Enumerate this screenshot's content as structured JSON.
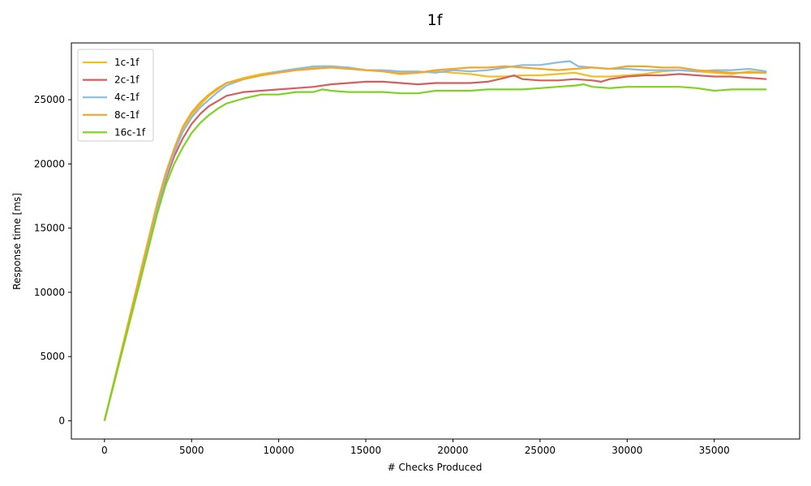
{
  "chart_data": {
    "type": "line",
    "title": "1f",
    "xlabel": "# Checks Produced",
    "ylabel": "Response time [ms]",
    "xlim": [
      -1900,
      39900
    ],
    "ylim": [
      -1420,
      29420
    ],
    "xticks": [
      0,
      5000,
      10000,
      15000,
      20000,
      25000,
      30000,
      35000
    ],
    "yticks": [
      0,
      5000,
      10000,
      15000,
      20000,
      25000
    ],
    "grid": false,
    "legend_position": "upper left",
    "series": [
      {
        "name": "1c-1f",
        "color": "#f0c020",
        "x": [
          0,
          1000,
          2000,
          3000,
          3500,
          4000,
          4500,
          5000,
          5500,
          6000,
          6500,
          7000,
          8000,
          9000,
          10000,
          11000,
          12000,
          12500,
          13000,
          14000,
          15000,
          16000,
          17000,
          18000,
          19000,
          20000,
          21000,
          22000,
          23000,
          24000,
          25000,
          26000,
          27000,
          28000,
          29000,
          30000,
          31000,
          32000,
          33000,
          34000,
          35000,
          36000,
          37000,
          38000
        ],
        "y": [
          0,
          5500,
          11000,
          16600,
          19000,
          21000,
          22700,
          23800,
          24600,
          25300,
          25800,
          26300,
          26700,
          27000,
          27200,
          27400,
          27500,
          27600,
          27600,
          27500,
          27300,
          27200,
          27100,
          27100,
          27200,
          27100,
          27000,
          26800,
          26800,
          26900,
          26900,
          27000,
          27100,
          26800,
          26800,
          26900,
          27000,
          27200,
          27300,
          27200,
          27100,
          27000,
          27200,
          27100
        ]
      },
      {
        "name": "2c-1f",
        "color": "#d45f5f",
        "x": [
          0,
          1000,
          2000,
          3000,
          3500,
          4000,
          4500,
          5000,
          5500,
          6000,
          6500,
          7000,
          8000,
          9000,
          10000,
          11000,
          12000,
          13000,
          14000,
          15000,
          16000,
          17000,
          18000,
          19000,
          20000,
          21000,
          22000,
          23000,
          23500,
          24000,
          25000,
          26000,
          27000,
          28000,
          28500,
          29000,
          30000,
          31000,
          32000,
          33000,
          34000,
          35000,
          36000,
          37000,
          38000
        ],
        "y": [
          0,
          5400,
          10800,
          16300,
          18700,
          20600,
          22000,
          23100,
          23900,
          24500,
          24900,
          25300,
          25600,
          25700,
          25800,
          25900,
          26000,
          26200,
          26300,
          26400,
          26400,
          26300,
          26200,
          26300,
          26300,
          26300,
          26400,
          26700,
          26900,
          26600,
          26500,
          26500,
          26600,
          26500,
          26400,
          26600,
          26800,
          26900,
          26900,
          27000,
          26900,
          26800,
          26800,
          26700,
          26600
        ]
      },
      {
        "name": "4c-1f",
        "color": "#88bde6",
        "x": [
          0,
          1000,
          2000,
          3000,
          3500,
          4000,
          4500,
          5000,
          5500,
          6000,
          6500,
          7000,
          8000,
          9000,
          10000,
          11000,
          12000,
          13000,
          14000,
          15000,
          16000,
          17000,
          18000,
          19000,
          20000,
          21000,
          22000,
          23000,
          24000,
          25000,
          26000,
          26700,
          27200,
          28000,
          29000,
          30000,
          31000,
          32000,
          33000,
          34000,
          35000,
          36000,
          37000,
          38000
        ],
        "y": [
          0,
          5500,
          11000,
          16500,
          18900,
          20900,
          22500,
          23600,
          24400,
          25000,
          25600,
          26100,
          26600,
          26900,
          27200,
          27400,
          27600,
          27600,
          27500,
          27300,
          27300,
          27200,
          27200,
          27100,
          27300,
          27200,
          27300,
          27500,
          27700,
          27700,
          27900,
          28000,
          27600,
          27500,
          27400,
          27400,
          27300,
          27300,
          27300,
          27200,
          27300,
          27300,
          27400,
          27200
        ]
      },
      {
        "name": "8c-1f",
        "color": "#f5a623",
        "x": [
          0,
          1000,
          2000,
          3000,
          3500,
          4000,
          4500,
          5000,
          5500,
          6000,
          6500,
          7000,
          8000,
          9000,
          10000,
          11000,
          12000,
          13000,
          14000,
          15000,
          16000,
          17000,
          18000,
          19000,
          20000,
          21000,
          22000,
          23000,
          24000,
          25000,
          26000,
          27000,
          28000,
          29000,
          30000,
          31000,
          32000,
          33000,
          34000,
          35000,
          36000,
          37000,
          38000
        ],
        "y": [
          0,
          5600,
          11200,
          16800,
          19200,
          21200,
          22900,
          24000,
          24800,
          25400,
          25900,
          26300,
          26600,
          26900,
          27100,
          27300,
          27400,
          27500,
          27400,
          27300,
          27200,
          27000,
          27100,
          27300,
          27400,
          27500,
          27500,
          27600,
          27500,
          27400,
          27300,
          27400,
          27500,
          27400,
          27600,
          27600,
          27500,
          27500,
          27300,
          27200,
          27100,
          27100,
          27100
        ]
      },
      {
        "name": "16c-1f",
        "color": "#7ed321",
        "x": [
          0,
          1000,
          2000,
          3000,
          3500,
          4000,
          4500,
          5000,
          5500,
          6000,
          6500,
          7000,
          8000,
          9000,
          10000,
          11000,
          12000,
          12500,
          13000,
          14000,
          15000,
          16000,
          17000,
          18000,
          19000,
          20000,
          21000,
          22000,
          23000,
          24000,
          25000,
          26000,
          27000,
          27500,
          28000,
          29000,
          30000,
          31000,
          32000,
          33000,
          34000,
          35000,
          36000,
          37000,
          38000
        ],
        "y": [
          0,
          5300,
          10600,
          16000,
          18300,
          20000,
          21300,
          22400,
          23200,
          23800,
          24300,
          24700,
          25100,
          25400,
          25400,
          25600,
          25600,
          25800,
          25700,
          25600,
          25600,
          25600,
          25500,
          25500,
          25700,
          25700,
          25700,
          25800,
          25800,
          25800,
          25900,
          26000,
          26100,
          26200,
          26000,
          25900,
          26000,
          26000,
          26000,
          26000,
          25900,
          25700,
          25800,
          25800,
          25800
        ]
      }
    ]
  }
}
